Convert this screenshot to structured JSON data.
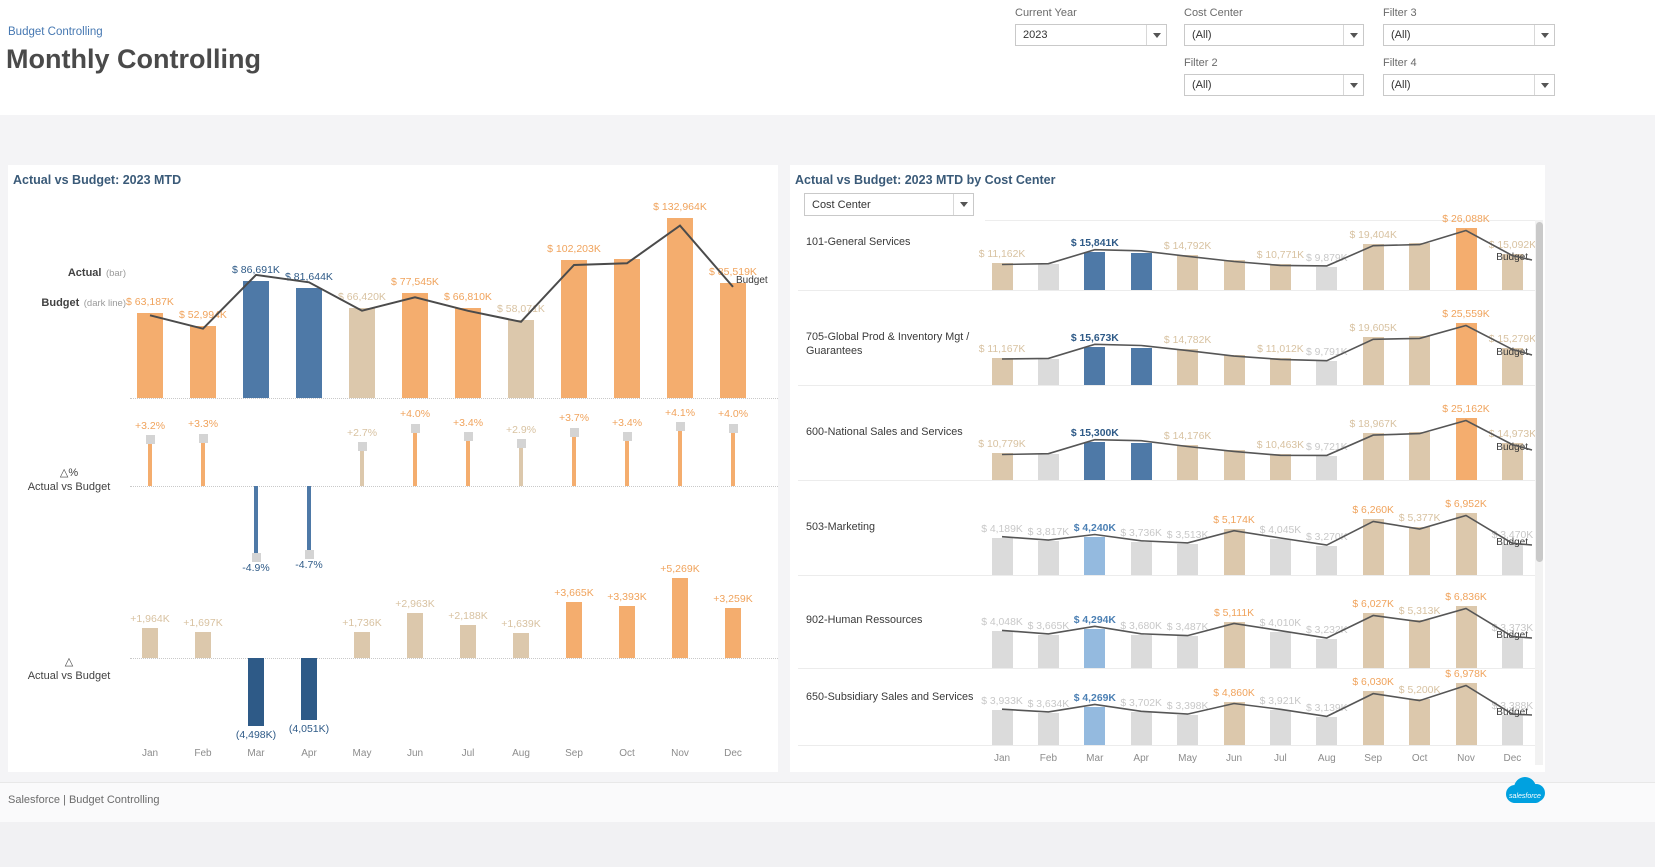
{
  "colors": {
    "orange": "#F4AD6E",
    "tan": "#DCC8AC",
    "blue": "#4E79A7",
    "darkblue": "#2E5A87",
    "lightblue": "#94BADF",
    "gray": "#DBDBDB",
    "line": "#4B4B4B",
    "marker": "#D4D4D4",
    "labelOrange": "#F0A35C",
    "labelTan": "#D8C2A1",
    "labelBlue": "#2E5A87",
    "labelLightBlue": "#4C80B4",
    "labelGray": "#C8C8C8",
    "labelDark": "#3A3A3A",
    "accent": "#4678B2",
    "logoBlue": "#00A1E0"
  },
  "months": [
    "Jan",
    "Feb",
    "Mar",
    "Apr",
    "May",
    "Jun",
    "Jul",
    "Aug",
    "Sep",
    "Oct",
    "Nov",
    "Dec"
  ],
  "header": {
    "breadcrumb": "Budget Controlling",
    "title": "Monthly Controlling",
    "filters": [
      {
        "label": "Current Year",
        "value": "2023"
      },
      {
        "label": "Cost Center",
        "value": "(All)"
      },
      {
        "label": "Filter 3",
        "value": "(All)"
      },
      {
        "label": "Filter 2",
        "value": "(All)"
      },
      {
        "label": "Filter 4",
        "value": "(All)"
      }
    ]
  },
  "footer": {
    "text": "Salesforce | Budget Controlling",
    "logo_text": "salesforce"
  },
  "chart_data": [
    {
      "type": "bar",
      "title": "Actual vs Budget: 2023 MTD",
      "categories": [
        "Jan",
        "Feb",
        "Mar",
        "Apr",
        "May",
        "Jun",
        "Jul",
        "Aug",
        "Sep",
        "Oct",
        "Nov",
        "Dec"
      ],
      "legend": {
        "actual_label": "Actual",
        "actual_suffix": "(bar)",
        "budget_label": "Budget",
        "budget_suffix": "(dark line)"
      },
      "axis_sections": {
        "delta_pct": {
          "symbol": "△%",
          "label": "Actual vs Budget"
        },
        "delta_abs": {
          "symbol": "△",
          "label": "Actual vs Budget"
        }
      },
      "budget_end_label": "Budget",
      "series": [
        {
          "name": "Actual",
          "values": [
            63187,
            52994,
            86691,
            81644,
            66420,
            77545,
            66810,
            58071,
            102203,
            103200,
            132964,
            85519
          ],
          "labels": [
            "$ 63,187K",
            "$ 52,994K",
            "$ 86,691K",
            "$ 81,644K",
            "$ 66,420K",
            "$ 77,545K",
            "$ 66,810K",
            "$ 58,071K",
            "$ 102,203K",
            null,
            "$ 132,964K",
            "$ 85,519K"
          ],
          "bar_colors": [
            "orange",
            "orange",
            "blue",
            "blue",
            "tan",
            "orange",
            "orange",
            "tan",
            "orange",
            "orange",
            "orange",
            "orange"
          ],
          "label_colors": [
            "labelOrange",
            "labelOrange",
            "labelBlue",
            "labelBlue",
            "labelTan",
            "labelOrange",
            "labelOrange",
            "labelTan",
            "labelOrange",
            null,
            "labelOrange",
            "labelOrange"
          ]
        },
        {
          "name": "Budget",
          "values": [
            61223,
            51297,
            91189,
            85695,
            64684,
            74582,
            64622,
            56432,
            98538,
            99807,
            127695,
            82260
          ]
        },
        {
          "name": "Delta % Actual vs Budget",
          "values": [
            3.2,
            3.3,
            -4.9,
            -4.7,
            2.7,
            4.0,
            3.4,
            2.9,
            3.7,
            3.4,
            4.1,
            4.0
          ],
          "labels": [
            "+3.2%",
            "+3.3%",
            "-4.9%",
            "-4.7%",
            "+2.7%",
            "+4.0%",
            "+3.4%",
            "+2.9%",
            "+3.7%",
            "+3.4%",
            "+4.1%",
            "+4.0%"
          ],
          "bar_colors": [
            "orange",
            "orange",
            "blue",
            "blue",
            "tan",
            "orange",
            "orange",
            "tan",
            "orange",
            "orange",
            "orange",
            "orange"
          ],
          "label_colors": [
            "labelOrange",
            "labelOrange",
            "labelBlue",
            "labelBlue",
            "labelTan",
            "labelOrange",
            "labelOrange",
            "labelTan",
            "labelOrange",
            "labelOrange",
            "labelOrange",
            "labelOrange"
          ]
        },
        {
          "name": "Delta Actual vs Budget",
          "values": [
            1964,
            1697,
            -4498,
            -4051,
            1736,
            2963,
            2188,
            1639,
            3665,
            3393,
            5269,
            3259
          ],
          "labels": [
            "+1,964K",
            "+1,697K",
            "(4,498K)",
            "(4,051K)",
            "+1,736K",
            "+2,963K",
            "+2,188K",
            "+1,639K",
            "+3,665K",
            "+3,393K",
            "+5,269K",
            "+3,259K"
          ],
          "bar_colors": [
            "tan",
            "tan",
            "darkblue",
            "darkblue",
            "tan",
            "tan",
            "tan",
            "tan",
            "orange",
            "orange",
            "orange",
            "orange"
          ],
          "label_colors": [
            "labelTan",
            "labelTan",
            "labelBlue",
            "labelBlue",
            "labelTan",
            "labelTan",
            "labelTan",
            "labelTan",
            "labelOrange",
            "labelOrange",
            "labelOrange",
            "labelOrange"
          ]
        }
      ]
    },
    {
      "type": "bar",
      "title": "Actual vs Budget: 2023 MTD by Cost Center",
      "dropdown_label": "Cost Center",
      "categories": [
        "Jan",
        "Feb",
        "Mar",
        "Apr",
        "May",
        "Jun",
        "Jul",
        "Aug",
        "Sep",
        "Oct",
        "Nov",
        "Dec"
      ],
      "budget_end_label": "Budget",
      "rows": [
        {
          "label": "101-General Services",
          "values": [
            11162,
            10800,
            15841,
            15400,
            14792,
            12500,
            10771,
            9879,
            19404,
            19900,
            26088,
            15092
          ],
          "labels": [
            "$ 11,162K",
            null,
            "$ 15,841K",
            null,
            "$ 14,792K",
            null,
            "$ 10,771K",
            "$ 9,879K",
            "$ 19,404K",
            null,
            "$ 26,088K",
            "$ 15,092K"
          ],
          "bar_colors": [
            "tan",
            "gray",
            "blue",
            "blue",
            "tan",
            "tan",
            "tan",
            "gray",
            "tan",
            "tan",
            "orange",
            "tan"
          ],
          "label_colors": [
            "labelTan",
            null,
            "labelBlue",
            null,
            "labelTan",
            null,
            "labelTan",
            "labelGray",
            "labelTan",
            null,
            "labelOrange",
            "labelTan"
          ]
        },
        {
          "label": "705-Global Prod & Inventory Mgt / Guarantees",
          "values": [
            11167,
            10700,
            15673,
            15200,
            14782,
            12400,
            11012,
            9791,
            19605,
            20000,
            25559,
            15279
          ],
          "labels": [
            "$ 11,167K",
            null,
            "$ 15,673K",
            null,
            "$ 14,782K",
            null,
            "$ 11,012K",
            "$ 9,791K",
            "$ 19,605K",
            null,
            "$ 25,559K",
            "$ 15,279K"
          ],
          "bar_colors": [
            "tan",
            "gray",
            "blue",
            "blue",
            "tan",
            "tan",
            "tan",
            "gray",
            "tan",
            "tan",
            "orange",
            "tan"
          ],
          "label_colors": [
            "labelTan",
            null,
            "labelBlue",
            null,
            "labelTan",
            null,
            "labelTan",
            "labelGray",
            "labelTan",
            null,
            "labelOrange",
            "labelTan"
          ]
        },
        {
          "label": "600-National Sales and Services",
          "values": [
            10779,
            10400,
            15300,
            14900,
            14176,
            12100,
            10463,
            9721,
            18967,
            19600,
            25162,
            14973
          ],
          "labels": [
            "$ 10,779K",
            null,
            "$ 15,300K",
            null,
            "$ 14,176K",
            null,
            "$ 10,463K",
            "$ 9,721K",
            "$ 18,967K",
            null,
            "$ 25,162K",
            "$ 14,973K"
          ],
          "bar_colors": [
            "tan",
            "gray",
            "blue",
            "blue",
            "tan",
            "tan",
            "tan",
            "gray",
            "tan",
            "tan",
            "orange",
            "tan"
          ],
          "label_colors": [
            "labelTan",
            null,
            "labelBlue",
            null,
            "labelTan",
            null,
            "labelTan",
            "labelGray",
            "labelTan",
            null,
            "labelOrange",
            "labelTan"
          ]
        },
        {
          "label": "503-Marketing",
          "values": [
            4189,
            3817,
            4240,
            3736,
            3513,
            5174,
            4045,
            3270,
            6260,
            5377,
            6952,
            3470
          ],
          "labels": [
            "$ 4,189K",
            "$ 3,817K",
            "$ 4,240K",
            "$ 3,736K",
            "$ 3,513K",
            "$ 5,174K",
            "$ 4,045K",
            "$ 3,270K",
            "$ 6,260K",
            "$ 5,377K",
            "$ 6,952K",
            "$ 3,470K"
          ],
          "bar_colors": [
            "gray",
            "gray",
            "lightblue",
            "gray",
            "gray",
            "tan",
            "gray",
            "gray",
            "tan",
            "tan",
            "tan",
            "gray"
          ],
          "label_colors": [
            "labelGray",
            "labelGray",
            "labelLightBlue",
            "labelGray",
            "labelGray",
            "labelOrange",
            "labelGray",
            "labelGray",
            "labelOrange",
            "labelTan",
            "labelOrange",
            "labelGray"
          ]
        },
        {
          "label": "902-Human Ressources",
          "values": [
            4048,
            3665,
            4294,
            3680,
            3487,
            5111,
            4010,
            3232,
            6027,
            5313,
            6836,
            3373
          ],
          "labels": [
            "$ 4,048K",
            "$ 3,665K",
            "$ 4,294K",
            "$ 3,680K",
            "$ 3,487K",
            "$ 5,111K",
            "$ 4,010K",
            "$ 3,232K",
            "$ 6,027K",
            "$ 5,313K",
            "$ 6,836K",
            "$ 3,373K"
          ],
          "bar_colors": [
            "gray",
            "gray",
            "lightblue",
            "gray",
            "gray",
            "tan",
            "gray",
            "gray",
            "tan",
            "tan",
            "tan",
            "gray"
          ],
          "label_colors": [
            "labelGray",
            "labelGray",
            "labelLightBlue",
            "labelGray",
            "labelGray",
            "labelOrange",
            "labelGray",
            "labelGray",
            "labelOrange",
            "labelTan",
            "labelOrange",
            "labelGray"
          ]
        },
        {
          "label": "650-Subsidiary Sales and Services",
          "values": [
            3933,
            3634,
            4269,
            3702,
            3398,
            4860,
            3921,
            3139,
            6030,
            5200,
            6978,
            3388
          ],
          "labels": [
            "$ 3,933K",
            "$ 3,634K",
            "$ 4,269K",
            "$ 3,702K",
            "$ 3,398K",
            "$ 4,860K",
            "$ 3,921K",
            "$ 3,139K",
            "$ 6,030K",
            "$ 5,200K",
            "$ 6,978K",
            "$ 3,388K"
          ],
          "bar_colors": [
            "gray",
            "gray",
            "lightblue",
            "gray",
            "gray",
            "tan",
            "gray",
            "gray",
            "tan",
            "tan",
            "tan",
            "gray"
          ],
          "label_colors": [
            "labelGray",
            "labelGray",
            "labelLightBlue",
            "labelGray",
            "labelGray",
            "labelOrange",
            "labelGray",
            "labelGray",
            "labelOrange",
            "labelTan",
            "labelOrange",
            "labelGray"
          ]
        }
      ]
    }
  ]
}
